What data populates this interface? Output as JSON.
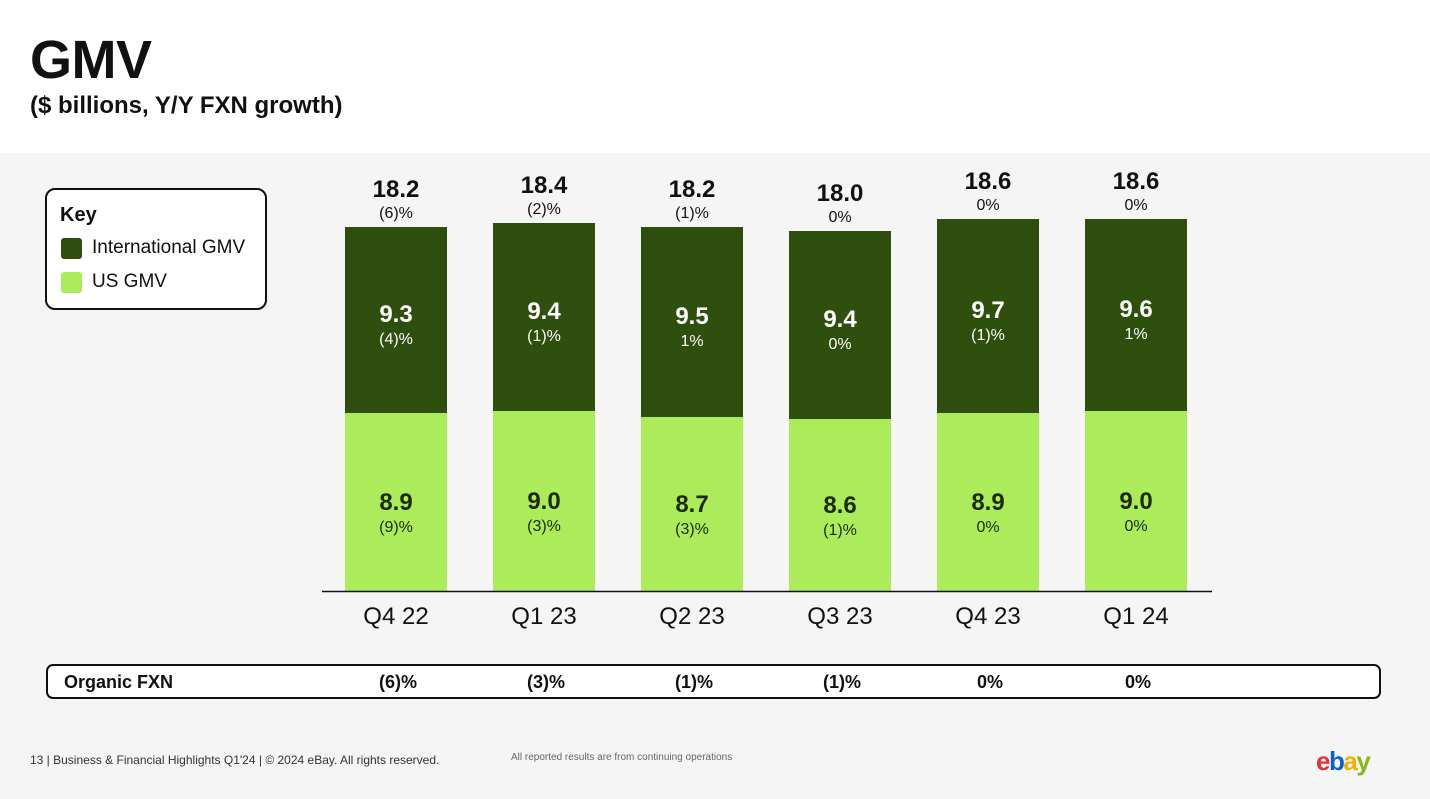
{
  "header": {
    "title": "GMV",
    "subtitle": "($ billions, Y/Y FXN growth)"
  },
  "legend": {
    "title": "Key",
    "items": [
      {
        "label": "International GMV",
        "color": "#2f4f0f"
      },
      {
        "label": "US GMV",
        "color": "#acec5a"
      }
    ]
  },
  "chart_data": {
    "type": "bar",
    "stacked": true,
    "categories": [
      "Q4 22",
      "Q1 23",
      "Q2 23",
      "Q3 23",
      "Q4 23",
      "Q1 24"
    ],
    "series": [
      {
        "name": "US GMV",
        "color": "#acec5a",
        "values": [
          8.9,
          9.0,
          8.7,
          8.6,
          8.9,
          9.0
        ],
        "value_labels": [
          "8.9",
          "9.0",
          "8.7",
          "8.6",
          "8.9",
          "9.0"
        ],
        "growth_labels": [
          "(9)%",
          "(3)%",
          "(3)%",
          "(1)%",
          "0%",
          "0%"
        ]
      },
      {
        "name": "International GMV",
        "color": "#2f4f0f",
        "values": [
          9.3,
          9.4,
          9.5,
          9.4,
          9.7,
          9.6
        ],
        "value_labels": [
          "9.3",
          "9.4",
          "9.5",
          "9.4",
          "9.7",
          "9.6"
        ],
        "growth_labels": [
          "(4)%",
          "(1)%",
          "1%",
          "0%",
          "(1)%",
          "1%"
        ]
      }
    ],
    "totals": [
      18.2,
      18.4,
      18.2,
      18.0,
      18.6,
      18.6
    ],
    "total_labels": [
      "18.2",
      "18.4",
      "18.2",
      "18.0",
      "18.6",
      "18.6"
    ],
    "total_growth_labels": [
      "(6)%",
      "(2)%",
      "(1)%",
      "0%",
      "0%",
      "0%"
    ],
    "ylim": [
      0,
      18.6
    ],
    "grid": false,
    "legend_position": "top-left"
  },
  "organic_fxn": {
    "label": "Organic FXN",
    "values": [
      "(6)%",
      "(3)%",
      "(1)%",
      "(1)%",
      "0%",
      "0%"
    ]
  },
  "footer": {
    "text": "13 | Business & Financial Highlights Q1'24 | © 2024 eBay. All rights reserved.",
    "note": "All reported results are from continuing operations"
  },
  "logo": {
    "letters": [
      "e",
      "b",
      "a",
      "y"
    ],
    "colors": [
      "#e53238",
      "#0064d2",
      "#f5af02",
      "#86b817"
    ]
  }
}
